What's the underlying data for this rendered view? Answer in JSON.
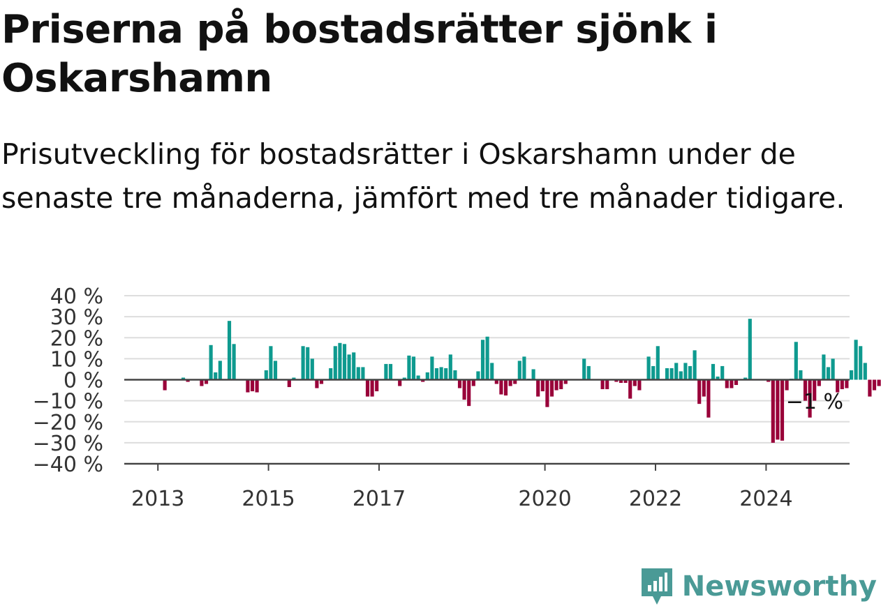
{
  "header": {
    "title": "Priserna på bostadsrätter sjönk i Oskarshamn",
    "subtitle": "Prisutveckling för bostadsrätter i Oskarshamn under de senaste tre månaderna, jämfört med tre månader tidigare."
  },
  "branding": {
    "name": "Newsworthy",
    "color": "#4a9a96"
  },
  "colors": {
    "positive": "#0e9a8f",
    "negative": "#990039",
    "zero_line": "#444444",
    "grid": "#dddddd"
  },
  "chart_data": {
    "type": "bar",
    "title": "Priserna på bostadsrätter sjönk i Oskarshamn",
    "subtitle": "Prisutveckling för bostadsrätter i Oskarshamn under de senaste tre månaderna, jämfört med tre månader tidigare.",
    "ylim": [
      -40,
      40
    ],
    "y_ticks": [
      40,
      30,
      20,
      10,
      0,
      -10,
      -20,
      -30,
      -40
    ],
    "y_tick_labels": [
      "40 %",
      "30 %",
      "20 %",
      "10 %",
      "0 %",
      "−10 %",
      "−20 %",
      "−30 %",
      "−40 %"
    ],
    "x_tick_labels": [
      "2013",
      "2015",
      "2017",
      "2020",
      "2022",
      "2024"
    ],
    "x_tick_years": [
      2013,
      2015,
      2017,
      2020,
      2022,
      2024
    ],
    "start_year": 2012.5,
    "grid": true,
    "end_label": "−1 %",
    "values": [
      0,
      0,
      0,
      0,
      0,
      0,
      0,
      -5,
      0,
      0,
      0,
      1,
      -1,
      0,
      0,
      -3,
      -2,
      16.5,
      3.5,
      9,
      0,
      28,
      17,
      0,
      0,
      -6,
      -5.5,
      -6,
      0,
      4.5,
      16,
      9,
      0,
      0,
      -3.5,
      1,
      0,
      16,
      15.5,
      10,
      -4,
      -2,
      0,
      5.5,
      16,
      17.5,
      17,
      12,
      13,
      6,
      6,
      -8,
      -8,
      -5.5,
      0,
      7.5,
      7.5,
      0,
      -3,
      1,
      11.5,
      11,
      2,
      -1,
      3.5,
      11,
      5.5,
      6,
      5.5,
      12,
      4.5,
      -4,
      -9.5,
      -12.5,
      -3,
      4,
      19,
      20.5,
      8,
      -2,
      -7,
      -7.5,
      -3,
      -2,
      9,
      11,
      0.5,
      5,
      -8,
      -5.5,
      -13,
      -8,
      -5,
      -4.5,
      -2,
      0,
      0,
      0,
      10,
      6.5,
      0,
      0,
      -4.5,
      -4.5,
      0,
      -1,
      -1.5,
      -1.5,
      -9,
      -3,
      -5,
      0,
      11,
      6.5,
      16,
      0,
      5.5,
      5.5,
      8,
      4,
      8,
      6.5,
      14,
      -11.5,
      -8,
      -18,
      7.5,
      1.5,
      6.5,
      -4,
      -4,
      -2.5,
      0,
      1,
      29,
      0,
      0,
      0,
      -1,
      -30,
      -28.5,
      -29,
      -5,
      0.5,
      18,
      4.5,
      -10,
      -18,
      -10,
      -3,
      12,
      6,
      10,
      -6,
      -4.5,
      -4,
      4.5,
      19,
      16,
      8,
      -8,
      -5,
      -3,
      7.5,
      -1
    ]
  }
}
